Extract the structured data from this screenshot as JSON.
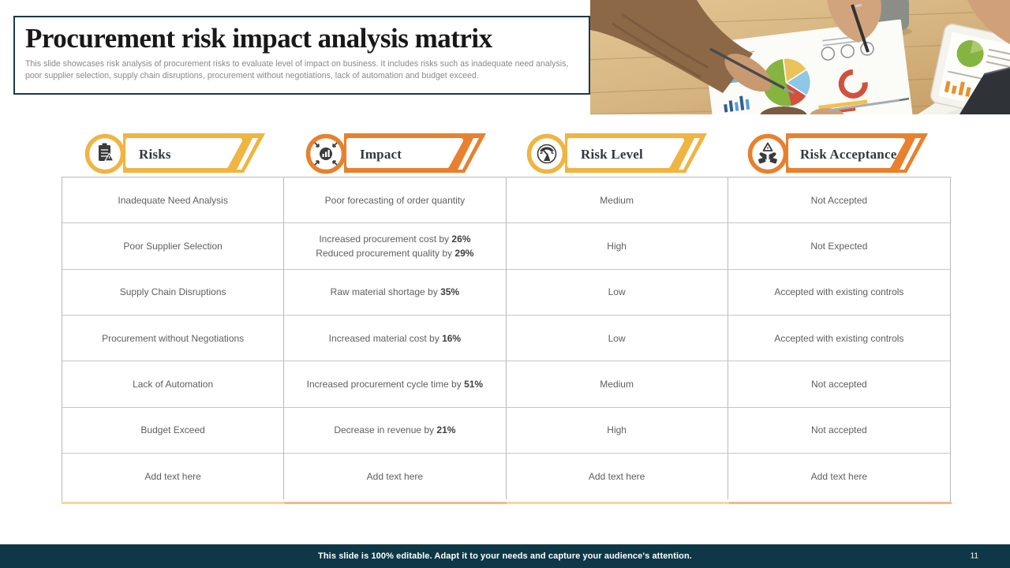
{
  "slide": {
    "title": "Procurement risk impact analysis matrix",
    "description": "This slide showcases risk analysis of procurement risks to evaluate level of impact on business. It includes risks such as inadequate need analysis, poor supplier selection, supply chain disruptions, procurement without negotiations, lack of automation and budget exceed.",
    "footer_note": "This slide is 100% editable. Adapt it to your needs and capture your audience's attention.",
    "page_number": "11"
  },
  "colors": {
    "yellow_accent": "#F0B441",
    "orange_accent": "#E8802E",
    "footer_navy": "#0E3847",
    "title_border_navy": "#1C394C",
    "table_border_gray": "#B9B9B9",
    "cell_text_gray": "#5F5F5F",
    "icon_dark": "#3B3B3B"
  },
  "columns": [
    {
      "label": "Risks",
      "icon": "clipboard-risk-icon",
      "accent": "#F0B441"
    },
    {
      "label": "Impact",
      "icon": "impact-arrows-icon",
      "accent": "#E8802E"
    },
    {
      "label": "Risk Level",
      "icon": "gauge-icon",
      "accent": "#F0B441"
    },
    {
      "label": "Risk Acceptance",
      "icon": "hands-acceptance-icon",
      "accent": "#E8802E"
    }
  ],
  "table": {
    "rows": [
      {
        "risk": "Inadequate Need Analysis",
        "impact": [
          {
            "text": "Poor forecasting of order quantity",
            "pct": ""
          }
        ],
        "risk_level": "Medium",
        "risk_acceptance": "Not Accepted",
        "placeholder": false
      },
      {
        "risk": "Poor Supplier Selection",
        "impact": [
          {
            "text": "Increased procurement cost by ",
            "pct": "26%"
          },
          {
            "text": "Reduced procurement quality by ",
            "pct": "29%"
          }
        ],
        "risk_level": "High",
        "risk_acceptance": "Not Expected",
        "placeholder": false
      },
      {
        "risk": "Supply Chain Disruptions",
        "impact": [
          {
            "text": "Raw material shortage by ",
            "pct": "35%"
          }
        ],
        "risk_level": "Low",
        "risk_acceptance": "Accepted with existing controls",
        "placeholder": false
      },
      {
        "risk": "Procurement without Negotiations",
        "impact": [
          {
            "text": "Increased material cost by ",
            "pct": "16%"
          }
        ],
        "risk_level": "Low",
        "risk_acceptance": "Accepted with existing controls",
        "placeholder": false
      },
      {
        "risk": "Lack of Automation",
        "impact": [
          {
            "text": "Increased procurement cycle time by ",
            "pct": "51%"
          }
        ],
        "risk_level": "Medium",
        "risk_acceptance": "Not accepted",
        "placeholder": false
      },
      {
        "risk": "Budget Exceed",
        "impact": [
          {
            "text": "Decrease in revenue by ",
            "pct": "21%"
          }
        ],
        "risk_level": "High",
        "risk_acceptance": "Not accepted",
        "placeholder": false
      },
      {
        "risk": "Add text here",
        "impact": [
          {
            "text": "Add text here",
            "pct": ""
          }
        ],
        "risk_level": "Add text here",
        "risk_acceptance": "Add text here",
        "placeholder": true
      }
    ]
  }
}
